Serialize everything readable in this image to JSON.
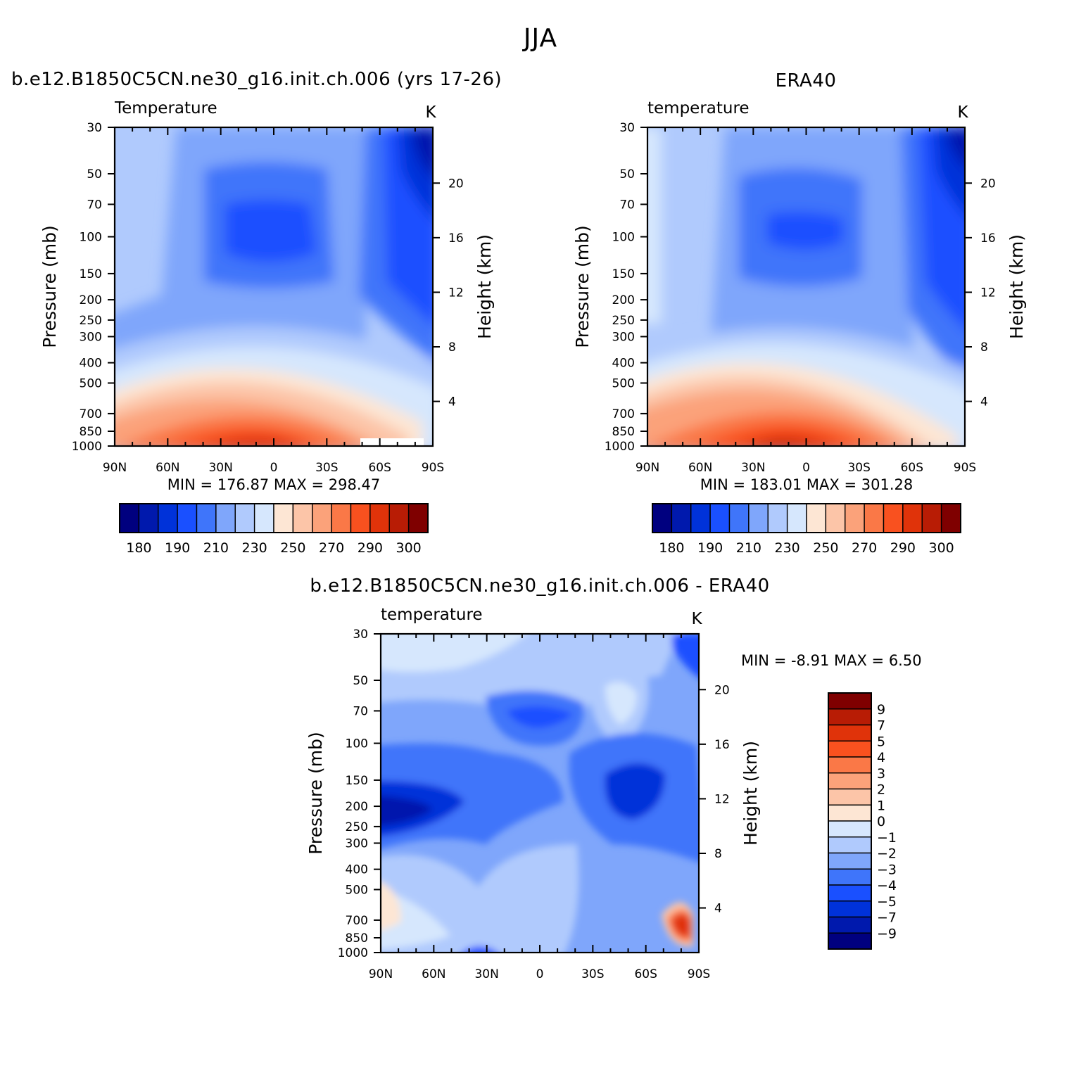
{
  "figure_title": "JJA",
  "chart_data": [
    {
      "type": "heatmap",
      "panel_title": "b.e12.B1850C5CN.ne30_g16.init.ch.006 (yrs 17-26)",
      "left_label": "Temperature",
      "units": "K",
      "ylabel": "Pressure (mb)",
      "y2label": "Height (km)",
      "x_ticks": [
        "90N",
        "60N",
        "30N",
        "0",
        "30S",
        "60S",
        "90S"
      ],
      "y_ticks": [
        "30",
        "50",
        "70",
        "100",
        "150",
        "200",
        "250",
        "300",
        "400",
        "500",
        "700",
        "850",
        "1000"
      ],
      "y2_ticks": [
        "20",
        "16",
        "12",
        "8",
        "4"
      ],
      "min": "176.87",
      "max": "298.47",
      "colorbar_labels": [
        "180",
        "190",
        "210",
        "230",
        "250",
        "270",
        "290",
        "300"
      ]
    },
    {
      "type": "heatmap",
      "panel_title": "ERA40",
      "left_label": "temperature",
      "units": "K",
      "ylabel": "Pressure (mb)",
      "y2label": "Height (km)",
      "x_ticks": [
        "90N",
        "60N",
        "30N",
        "0",
        "30S",
        "60S",
        "90S"
      ],
      "y_ticks": [
        "30",
        "50",
        "70",
        "100",
        "150",
        "200",
        "250",
        "300",
        "400",
        "500",
        "700",
        "850",
        "1000"
      ],
      "y2_ticks": [
        "20",
        "16",
        "12",
        "8",
        "4"
      ],
      "min": "183.01",
      "max": "301.28",
      "colorbar_labels": [
        "180",
        "190",
        "210",
        "230",
        "250",
        "270",
        "290",
        "300"
      ]
    },
    {
      "type": "heatmap",
      "panel_title": "b.e12.B1850C5CN.ne30_g16.init.ch.006 - ERA40",
      "left_label": "temperature",
      "units": "K",
      "ylabel": "Pressure (mb)",
      "y2label": "Height (km)",
      "x_ticks": [
        "90N",
        "60N",
        "30N",
        "0",
        "30S",
        "60S",
        "90S"
      ],
      "y_ticks": [
        "30",
        "50",
        "70",
        "100",
        "150",
        "200",
        "250",
        "300",
        "400",
        "500",
        "700",
        "850",
        "1000"
      ],
      "y2_ticks": [
        "20",
        "16",
        "12",
        "8",
        "4"
      ],
      "min": "-8.91",
      "max": "6.50",
      "colorbar_labels": [
        "9",
        "7",
        "5",
        "4",
        "3",
        "2",
        "1",
        "0",
        "−1",
        "−2",
        "−3",
        "−4",
        "−5",
        "−7",
        "−9"
      ]
    }
  ],
  "colors": {
    "temperature_scale": [
      "#00007f",
      "#0019ad",
      "#0032d9",
      "#1a50ff",
      "#3f75fa",
      "#7fa6fb",
      "#b0cafd",
      "#d6e7fd",
      "#fde6d4",
      "#fcc5a8",
      "#fba27a",
      "#fa7847",
      "#f9511f",
      "#e0330a",
      "#b81c05",
      "#7f0000"
    ],
    "difference_scale": [
      "#7f0000",
      "#b81c05",
      "#e0330a",
      "#f9511f",
      "#fa7847",
      "#fba27a",
      "#fcc5a8",
      "#fde6d4",
      "#d6e7fd",
      "#b0cafd",
      "#7fa6fb",
      "#3f75fa",
      "#1a50ff",
      "#0032d9",
      "#0019ad",
      "#00007f"
    ]
  }
}
